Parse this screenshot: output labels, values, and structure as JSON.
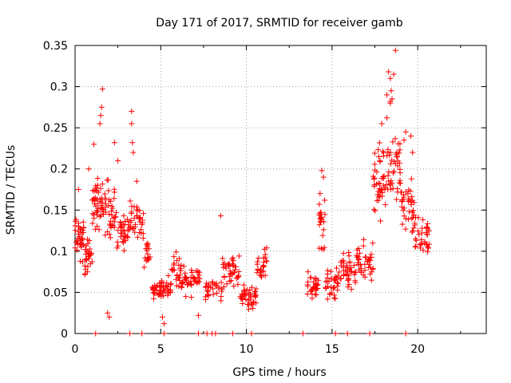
{
  "chart_data": {
    "type": "scatter",
    "title": "Day 171 of 2017, SRMTID for receiver gamb",
    "xlabel": "GPS time / hours",
    "ylabel": "SRMTID / TECUs",
    "xlim": [
      0,
      24
    ],
    "ylim": [
      0,
      0.35
    ],
    "grid": true,
    "marker": "+",
    "series_color": "#ff0000",
    "x_ticks": [
      {
        "value": 0,
        "label": "0"
      },
      {
        "value": 5,
        "label": "5"
      },
      {
        "value": 10,
        "label": "10"
      },
      {
        "value": 15,
        "label": "15"
      },
      {
        "value": 20,
        "label": "20"
      }
    ],
    "x_minor_ticks": [
      2.5,
      7.5,
      12.5,
      17.5,
      22.5
    ],
    "y_ticks": [
      {
        "value": 0,
        "label": "0"
      },
      {
        "value": 0.05,
        "label": "0.05"
      },
      {
        "value": 0.1,
        "label": "0.1"
      },
      {
        "value": 0.15,
        "label": "0.15"
      },
      {
        "value": 0.2,
        "label": "0.2"
      },
      {
        "value": 0.25,
        "label": "0.25"
      },
      {
        "value": 0.3,
        "label": "0.3"
      },
      {
        "value": 0.35,
        "label": "0.35"
      }
    ],
    "envelope": [
      {
        "start": 0.0,
        "end": 0.5,
        "center": 0.115,
        "spread": 0.04,
        "count": 38
      },
      {
        "start": 0.5,
        "end": 1.0,
        "center": 0.09,
        "spread": 0.035,
        "count": 28
      },
      {
        "start": 1.0,
        "end": 1.6,
        "center": 0.16,
        "spread": 0.05,
        "count": 42
      },
      {
        "start": 1.6,
        "end": 2.4,
        "center": 0.15,
        "spread": 0.045,
        "count": 40
      },
      {
        "start": 2.4,
        "end": 3.2,
        "center": 0.12,
        "spread": 0.04,
        "count": 36
      },
      {
        "start": 3.2,
        "end": 4.0,
        "center": 0.14,
        "spread": 0.04,
        "count": 34
      },
      {
        "start": 4.0,
        "end": 4.4,
        "center": 0.1,
        "spread": 0.03,
        "count": 16
      },
      {
        "start": 4.4,
        "end": 5.6,
        "center": 0.055,
        "spread": 0.02,
        "count": 52
      },
      {
        "start": 5.6,
        "end": 6.2,
        "center": 0.075,
        "spread": 0.03,
        "count": 24
      },
      {
        "start": 6.2,
        "end": 7.3,
        "center": 0.065,
        "spread": 0.025,
        "count": 44
      },
      {
        "start": 7.6,
        "end": 8.6,
        "center": 0.055,
        "spread": 0.02,
        "count": 30
      },
      {
        "start": 8.6,
        "end": 9.6,
        "center": 0.075,
        "spread": 0.03,
        "count": 40
      },
      {
        "start": 9.6,
        "end": 10.6,
        "center": 0.045,
        "spread": 0.018,
        "count": 46
      },
      {
        "start": 10.6,
        "end": 11.2,
        "center": 0.085,
        "spread": 0.03,
        "count": 26
      },
      {
        "start": 13.5,
        "end": 14.2,
        "center": 0.055,
        "spread": 0.02,
        "count": 30
      },
      {
        "start": 14.2,
        "end": 14.6,
        "center": 0.14,
        "spread": 0.05,
        "count": 22
      },
      {
        "start": 14.6,
        "end": 15.4,
        "center": 0.06,
        "spread": 0.025,
        "count": 34
      },
      {
        "start": 15.4,
        "end": 16.4,
        "center": 0.075,
        "spread": 0.03,
        "count": 42
      },
      {
        "start": 16.4,
        "end": 17.4,
        "center": 0.09,
        "spread": 0.035,
        "count": 42
      },
      {
        "start": 17.4,
        "end": 18.2,
        "center": 0.18,
        "spread": 0.06,
        "count": 44
      },
      {
        "start": 18.2,
        "end": 19.0,
        "center": 0.2,
        "spread": 0.06,
        "count": 42
      },
      {
        "start": 19.0,
        "end": 19.8,
        "center": 0.15,
        "spread": 0.05,
        "count": 38
      },
      {
        "start": 19.8,
        "end": 20.7,
        "center": 0.115,
        "spread": 0.035,
        "count": 36
      }
    ],
    "peaks": [
      {
        "x": 0.2,
        "y": 0.175
      },
      {
        "x": 0.8,
        "y": 0.2
      },
      {
        "x": 1.1,
        "y": 0.23
      },
      {
        "x": 1.5,
        "y": 0.265
      },
      {
        "x": 1.55,
        "y": 0.275
      },
      {
        "x": 1.6,
        "y": 0.297
      },
      {
        "x": 1.45,
        "y": 0.255
      },
      {
        "x": 2.3,
        "y": 0.232
      },
      {
        "x": 2.5,
        "y": 0.21
      },
      {
        "x": 3.3,
        "y": 0.27
      },
      {
        "x": 3.3,
        "y": 0.255
      },
      {
        "x": 3.35,
        "y": 0.232
      },
      {
        "x": 3.4,
        "y": 0.22
      },
      {
        "x": 3.6,
        "y": 0.185
      },
      {
        "x": 2.0,
        "y": 0.02
      },
      {
        "x": 1.9,
        "y": 0.025
      },
      {
        "x": 5.2,
        "y": 0.012
      },
      {
        "x": 5.1,
        "y": 0.02
      },
      {
        "x": 8.5,
        "y": 0.143
      },
      {
        "x": 7.2,
        "y": 0.022
      },
      {
        "x": 14.4,
        "y": 0.198
      },
      {
        "x": 14.5,
        "y": 0.19
      },
      {
        "x": 14.3,
        "y": 0.17
      },
      {
        "x": 13.6,
        "y": 0.075
      },
      {
        "x": 17.9,
        "y": 0.255
      },
      {
        "x": 18.2,
        "y": 0.262
      },
      {
        "x": 18.3,
        "y": 0.318
      },
      {
        "x": 18.4,
        "y": 0.31
      },
      {
        "x": 18.6,
        "y": 0.315
      },
      {
        "x": 18.7,
        "y": 0.344
      },
      {
        "x": 18.2,
        "y": 0.29
      },
      {
        "x": 18.5,
        "y": 0.285
      },
      {
        "x": 18.5,
        "y": 0.285
      },
      {
        "x": 18.4,
        "y": 0.28
      },
      {
        "x": 18.45,
        "y": 0.295
      },
      {
        "x": 19.3,
        "y": 0.245
      },
      {
        "x": 19.2,
        "y": 0.235
      },
      {
        "x": 19.6,
        "y": 0.24
      },
      {
        "x": 19.7,
        "y": 0.22
      },
      {
        "x": 18.4,
        "y": 0.282
      }
    ],
    "zero_points": [
      1.2,
      3.2,
      3.9,
      5.2,
      7.2,
      7.7,
      8.0,
      8.2,
      9.2,
      10.3,
      13.3,
      15.2,
      15.9,
      17.2,
      19.3
    ]
  }
}
